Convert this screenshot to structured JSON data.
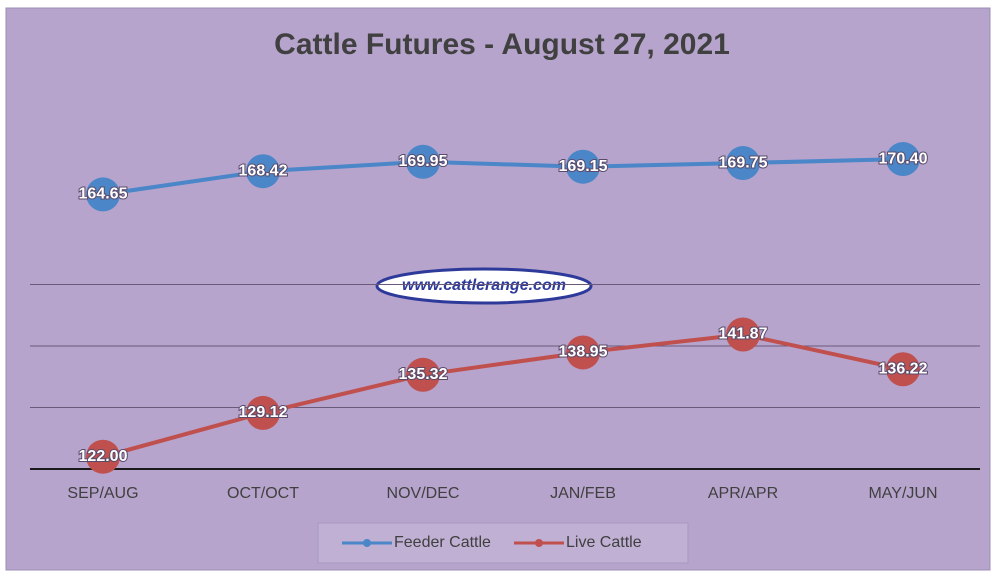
{
  "chart_data": {
    "type": "line",
    "title": "Cattle Futures - August 27, 2021",
    "annotation": "www.cattlerange.com",
    "categories": [
      "SEP/AUG",
      "OCT/OCT",
      "NOV/DEC",
      "JAN/FEB",
      "APR/APR",
      "MAY/JUN"
    ],
    "series": [
      {
        "name": "Feeder Cattle",
        "color": "#4a86c8",
        "values": [
          164.65,
          168.42,
          169.95,
          169.15,
          169.75,
          170.4
        ],
        "value_labels": [
          "164.65",
          "168.42",
          "169.95",
          "169.15",
          "169.75",
          "170.40"
        ]
      },
      {
        "name": "Live Cattle",
        "color": "#c0504d",
        "values": [
          122,
          129.12,
          135.32,
          138.95,
          141.87,
          136.22
        ],
        "value_labels": [
          "122.00",
          "129.12",
          "135.32",
          "138.95",
          "141.87",
          "136.22"
        ]
      }
    ],
    "ylim": [
      120,
      180
    ],
    "yticks": [
      120,
      130,
      140,
      150
    ],
    "grid": true,
    "legend": "bottom"
  }
}
